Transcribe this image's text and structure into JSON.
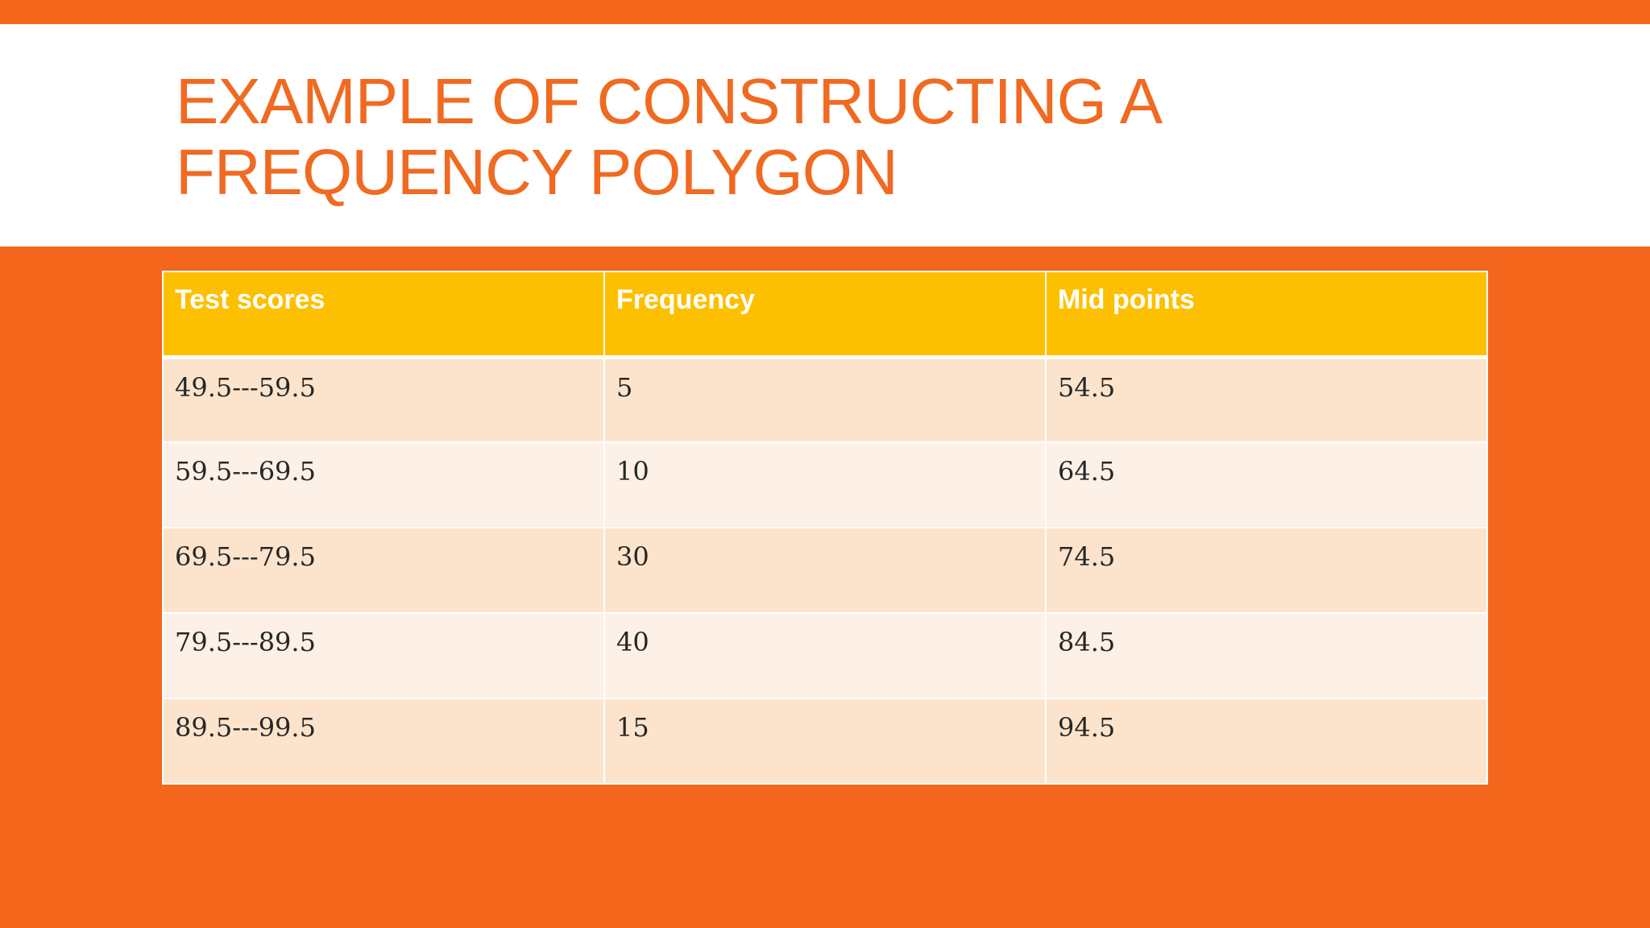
{
  "slide": {
    "title": "EXAMPLE OF CONSTRUCTING A FREQUENCY POLYGON",
    "colors": {
      "background": "#f4661b",
      "title_band": "#ffffff",
      "title_text": "#f06a22",
      "header_fill": "#fdc000",
      "row_odd": "#fce4cc",
      "row_even": "#fdf0e6"
    }
  },
  "table": {
    "headers": [
      "Test scores",
      "Frequency",
      "Mid points"
    ],
    "rows": [
      [
        "49.5---59.5",
        "5",
        "54.5"
      ],
      [
        "59.5---69.5",
        "10",
        "64.5"
      ],
      [
        "69.5---79.5",
        "30",
        "74.5"
      ],
      [
        "79.5---89.5",
        "40",
        "84.5"
      ],
      [
        "89.5---99.5",
        "15",
        "94.5"
      ]
    ]
  }
}
